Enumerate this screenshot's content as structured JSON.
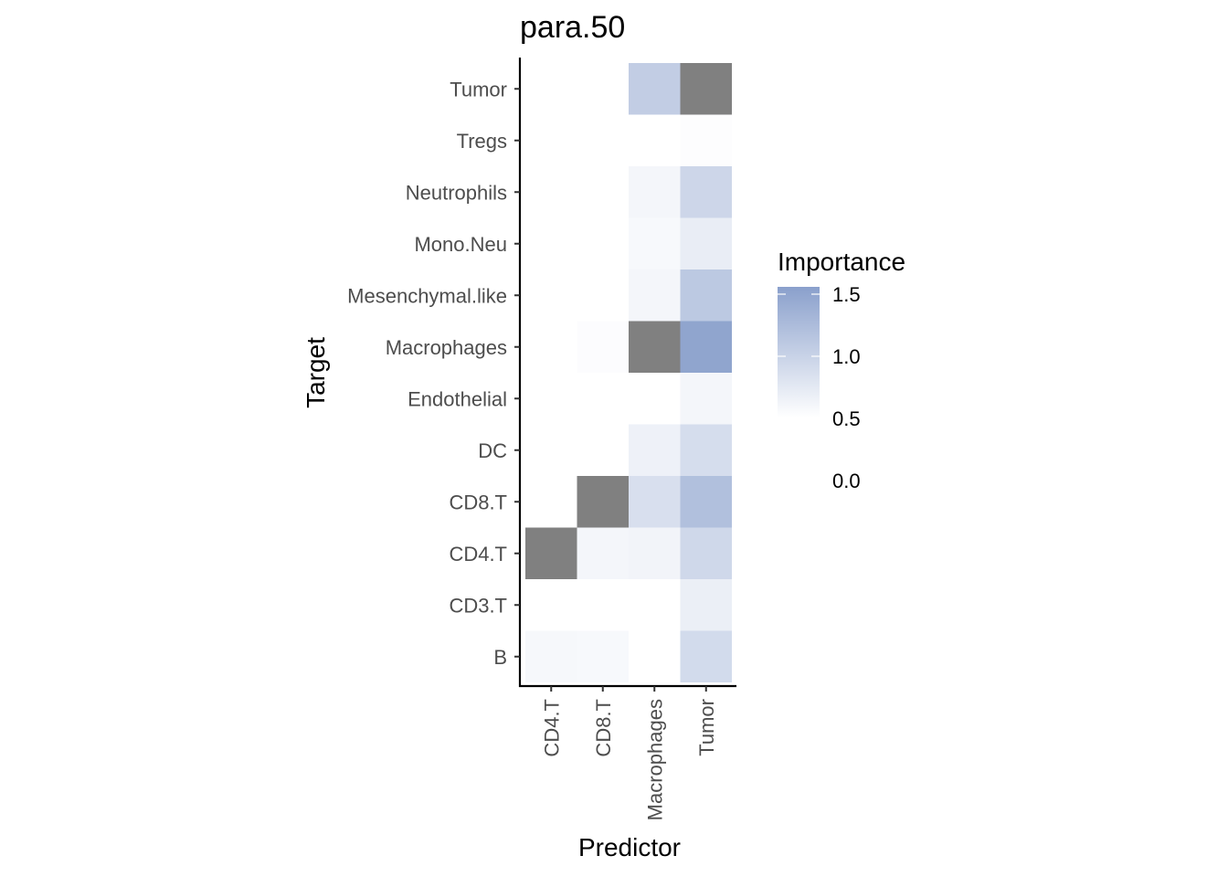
{
  "chart_data": {
    "type": "heatmap",
    "title": "para.50",
    "xlabel": "Predictor",
    "ylabel": "Target",
    "x_categories": [
      "CD4.T",
      "CD8.T",
      "Macrophages",
      "Tumor"
    ],
    "y_categories": [
      "Tumor",
      "Tregs",
      "Neutrophils",
      "Mono.Neu",
      "Mesenchymal.like",
      "Macrophages",
      "Endothelial",
      "DC",
      "CD8.T",
      "CD4.T",
      "CD3.T",
      "B"
    ],
    "values": [
      [
        null,
        null,
        1.05,
        null
      ],
      [
        null,
        null,
        null,
        0.52
      ],
      [
        null,
        null,
        0.6,
        0.95
      ],
      [
        null,
        null,
        0.57,
        0.7
      ],
      [
        null,
        null,
        0.6,
        1.1
      ],
      [
        null,
        0.53,
        null,
        1.5
      ],
      [
        null,
        null,
        null,
        0.6
      ],
      [
        null,
        null,
        0.65,
        0.88
      ],
      [
        null,
        null,
        0.85,
        1.2
      ],
      [
        null,
        0.6,
        0.62,
        0.93
      ],
      [
        null,
        null,
        null,
        0.68
      ],
      [
        0.58,
        0.57,
        null,
        0.9
      ]
    ],
    "diagonal_fill": "#808080",
    "color_scale": {
      "low_color": "#ffffff",
      "high_color": "#8aa0cc",
      "min": 0.5,
      "max": 1.55
    },
    "legend": {
      "title": "Importance",
      "ticks": [
        "1.5",
        "1.0",
        "0.5",
        "0.0"
      ],
      "placement": "right"
    },
    "grid": false
  }
}
